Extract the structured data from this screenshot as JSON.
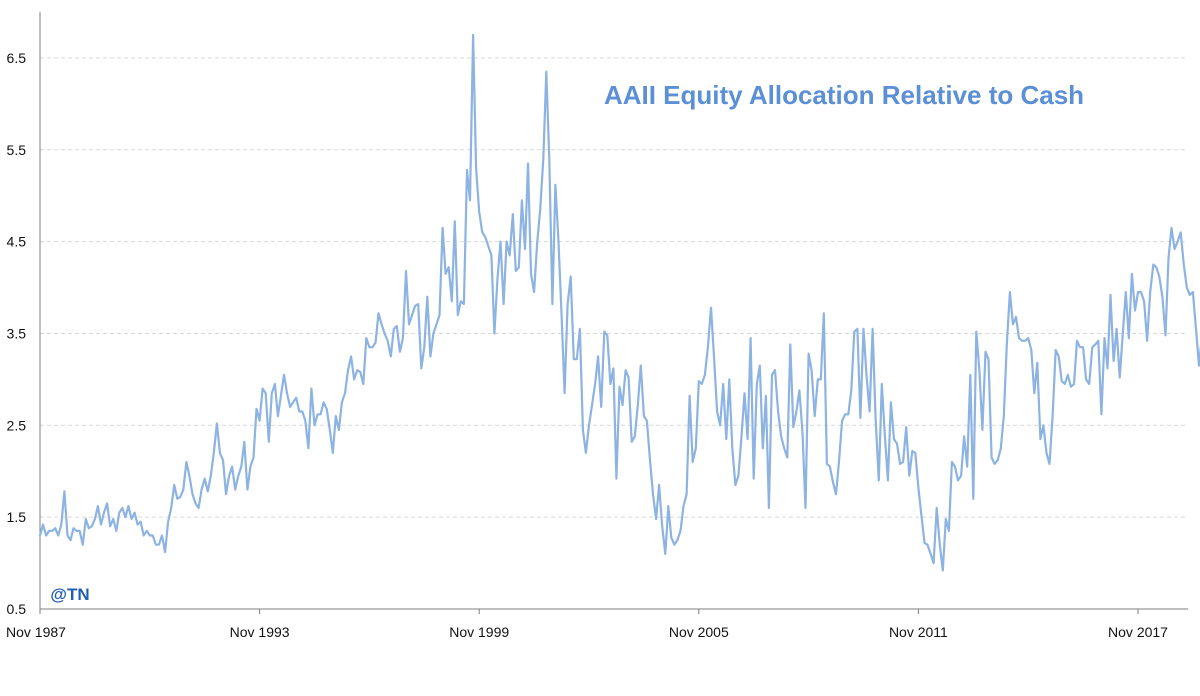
{
  "watermark": "@TN",
  "colors": {
    "series": "#8db3e2",
    "title": "#5b8fd6",
    "grid": "#d9d9d9",
    "axis": "#7f7f7f",
    "watermark_text": "#1f5fb0",
    "watermark_bg": "#ffffff"
  },
  "chart_data": {
    "type": "line",
    "title": "AAII Equity Allocation Relative to Cash",
    "xlabel": "",
    "ylabel": "",
    "ylim": [
      0.5,
      7.0
    ],
    "yticks": [
      0.5,
      1.5,
      2.5,
      3.5,
      4.5,
      5.5,
      6.5
    ],
    "xlim": [
      "1987-11",
      "2019-04"
    ],
    "xticks": [
      "Nov 1987",
      "Nov 1993",
      "Nov 1999",
      "Nov 2005",
      "Nov 2011",
      "Nov 2017"
    ],
    "grid": "horizontal dashed",
    "frequency": "monthly, 1987-11 to 2019-04",
    "series": [
      {
        "name": "",
        "values": [
          1.3,
          1.42,
          1.3,
          1.35,
          1.35,
          1.38,
          1.3,
          1.42,
          1.78,
          1.3,
          1.25,
          1.38,
          1.35,
          1.35,
          1.2,
          1.48,
          1.38,
          1.4,
          1.48,
          1.62,
          1.42,
          1.55,
          1.65,
          1.4,
          1.48,
          1.35,
          1.55,
          1.6,
          1.5,
          1.62,
          1.48,
          1.55,
          1.42,
          1.45,
          1.3,
          1.35,
          1.3,
          1.3,
          1.2,
          1.2,
          1.3,
          1.12,
          1.45,
          1.6,
          1.85,
          1.7,
          1.72,
          1.8,
          2.1,
          1.95,
          1.75,
          1.65,
          1.6,
          1.8,
          1.92,
          1.78,
          1.95,
          2.2,
          2.52,
          2.2,
          2.12,
          1.75,
          1.95,
          2.05,
          1.8,
          1.95,
          2.05,
          2.32,
          1.8,
          2.05,
          2.15,
          2.68,
          2.55,
          2.9,
          2.85,
          2.32,
          2.85,
          2.95,
          2.6,
          2.82,
          3.05,
          2.85,
          2.7,
          2.75,
          2.8,
          2.65,
          2.65,
          2.55,
          2.25,
          2.9,
          2.5,
          2.62,
          2.62,
          2.75,
          2.68,
          2.45,
          2.2,
          2.6,
          2.45,
          2.75,
          2.85,
          3.1,
          3.25,
          3.0,
          3.1,
          3.08,
          2.95,
          3.45,
          3.35,
          3.35,
          3.4,
          3.72,
          3.6,
          3.5,
          3.42,
          3.25,
          3.55,
          3.58,
          3.3,
          3.45,
          4.18,
          3.6,
          3.7,
          3.8,
          3.82,
          3.12,
          3.35,
          3.9,
          3.25,
          3.5,
          3.6,
          3.7,
          4.65,
          4.15,
          4.22,
          3.85,
          4.72,
          3.7,
          3.85,
          3.82,
          5.28,
          4.95,
          6.75,
          5.3,
          4.82,
          4.6,
          4.55,
          4.45,
          4.35,
          3.5,
          4.1,
          4.5,
          3.82,
          4.5,
          4.35,
          4.8,
          4.18,
          4.22,
          4.95,
          4.42,
          5.35,
          4.15,
          3.95,
          4.48,
          4.85,
          5.4,
          6.35,
          5.4,
          3.82,
          5.12,
          4.5,
          3.72,
          2.85,
          3.82,
          4.12,
          3.22,
          3.22,
          3.55,
          2.45,
          2.2,
          2.5,
          2.72,
          2.95,
          3.25,
          2.7,
          3.52,
          3.48,
          2.95,
          3.12,
          1.92,
          2.92,
          2.72,
          3.1,
          3.02,
          2.32,
          2.38,
          2.72,
          3.15,
          2.6,
          2.55,
          2.12,
          1.75,
          1.48,
          1.85,
          1.4,
          1.1,
          1.62,
          1.28,
          1.2,
          1.25,
          1.35,
          1.62,
          1.75,
          2.82,
          2.1,
          2.25,
          2.98,
          2.95,
          3.05,
          3.35,
          3.78,
          3.25,
          2.65,
          2.5,
          2.95,
          2.35,
          3.0,
          2.25,
          1.85,
          1.95,
          2.38,
          2.85,
          2.35,
          3.45,
          1.92,
          2.95,
          3.15,
          2.25,
          2.82,
          1.6,
          3.05,
          3.1,
          2.65,
          2.38,
          2.25,
          2.15,
          3.38,
          2.48,
          2.65,
          2.88,
          2.42,
          1.6,
          3.28,
          3.1,
          2.6,
          3.0,
          3.0,
          3.72,
          2.08,
          2.05,
          1.88,
          1.75,
          2.12,
          2.55,
          2.62,
          2.62,
          2.88,
          3.52,
          3.55,
          2.58,
          3.55,
          3.05,
          2.65,
          3.55,
          2.55,
          1.9,
          2.95,
          2.4,
          1.9,
          2.75,
          2.35,
          2.3,
          2.08,
          2.1,
          2.48,
          1.95,
          2.22,
          2.2,
          1.82,
          1.52,
          1.22,
          1.2,
          1.1,
          1.0,
          1.6,
          1.2,
          0.92,
          1.48,
          1.35,
          2.1,
          2.05,
          1.9,
          1.95,
          2.38,
          2.05,
          3.05,
          1.7,
          3.52,
          3.1,
          2.45,
          3.3,
          3.22,
          2.15,
          2.08,
          2.12,
          2.25,
          2.6,
          3.38,
          3.95,
          3.6,
          3.68,
          3.45,
          3.42,
          3.42,
          3.45,
          3.32,
          2.85,
          3.18,
          2.35,
          2.5,
          2.2,
          2.08,
          2.6,
          3.32,
          3.25,
          2.98,
          2.95,
          3.05,
          2.92,
          2.95,
          3.42,
          3.35,
          3.35,
          3.0,
          2.95,
          3.35,
          3.38,
          3.42,
          2.62,
          3.45,
          3.12,
          3.92,
          3.2,
          3.55,
          3.02,
          3.5,
          3.95,
          3.45,
          4.15,
          3.75,
          3.95,
          3.95,
          3.85,
          3.42,
          3.95,
          4.25,
          4.22,
          4.12,
          3.9,
          3.48,
          4.32,
          4.65,
          4.42,
          4.5,
          4.6,
          4.25,
          4.0,
          3.92,
          3.95,
          3.55,
          3.15,
          3.48,
          3.55,
          3.7,
          3.72,
          3.12,
          2.88,
          3.5,
          3.7,
          3.22,
          3.45,
          3.6,
          3.62,
          3.32,
          3.82,
          3.65,
          3.7,
          3.85,
          3.72,
          3.72,
          3.78,
          3.82,
          4.35,
          3.88,
          3.92,
          4.25,
          4.72,
          4.2,
          4.3,
          4.55,
          4.9,
          5.52,
          5.35,
          4.72,
          4.78,
          4.05,
          4.4,
          4.35,
          4.3,
          4.02,
          4.38,
          3.95,
          3.25,
          2.88
        ]
      }
    ]
  }
}
